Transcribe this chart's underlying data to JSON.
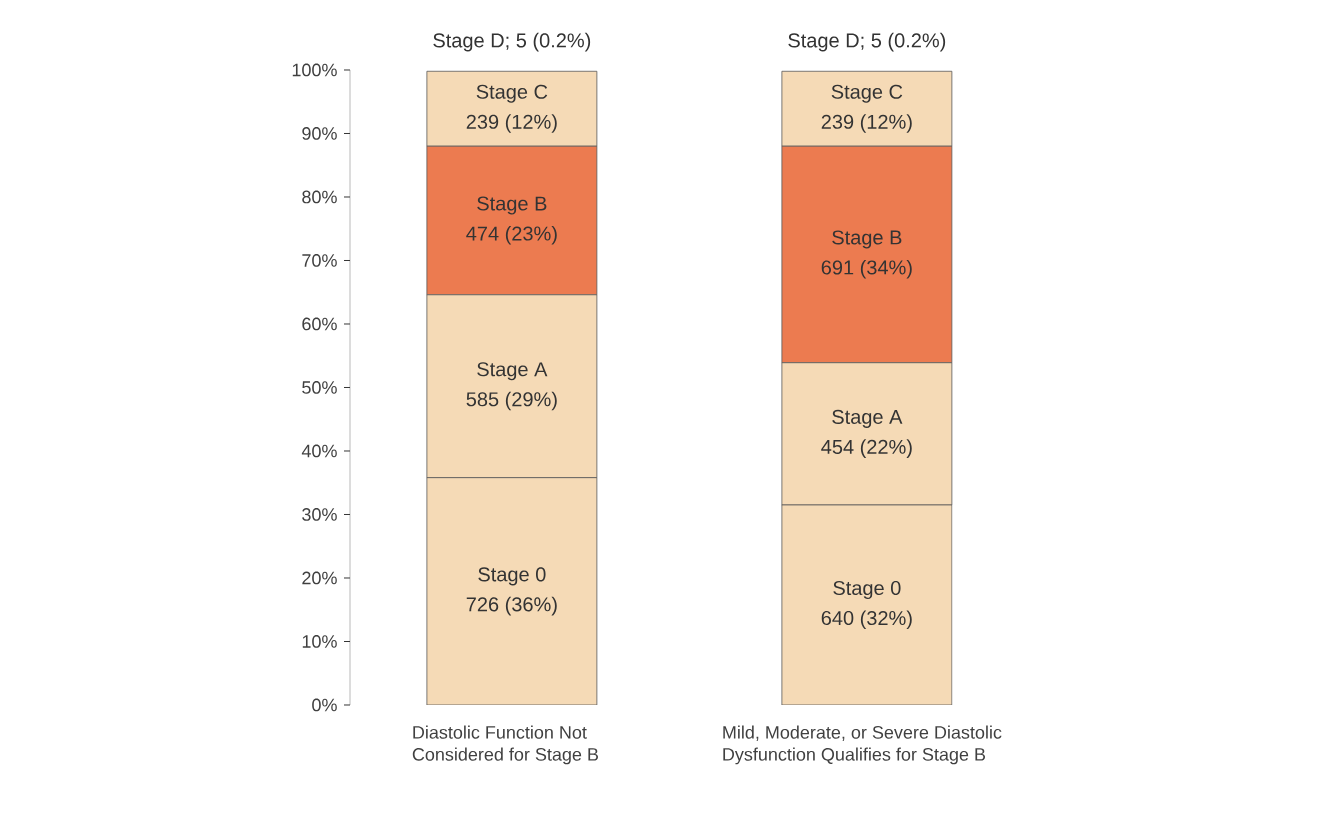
{
  "chart_data": {
    "type": "bar",
    "stacked": true,
    "categories": [
      "Diastolic Function Not Considered for Stage B",
      "Mild, Moderate, or Severe Diastolic Dysfunction Qualifies for Stage B"
    ],
    "series": [
      {
        "name": "Stage 0",
        "color": "#f5dab6",
        "values": [
          35.8,
          31.5
        ],
        "value_labels": [
          "726 (36%)",
          "640 (32%)"
        ]
      },
      {
        "name": "Stage A",
        "color": "#f5dab6",
        "values": [
          28.8,
          22.4
        ],
        "value_labels": [
          "585 (29%)",
          "454 (22%)"
        ]
      },
      {
        "name": "Stage B",
        "color": "#ec7b50",
        "values": [
          23.4,
          34.1
        ],
        "value_labels": [
          "474 (23%)",
          "691 (34%)"
        ]
      },
      {
        "name": "Stage C",
        "color": "#f5dab6",
        "values": [
          11.8,
          11.8
        ],
        "value_labels": [
          "239 (12%)",
          "239 (12%)"
        ]
      }
    ],
    "annotations": [
      {
        "text": "Stage D; 5 (0.2%)",
        "x": "Diastolic Function Not Considered for Stage B",
        "y": 100
      },
      {
        "text": "Stage D; 5 (0.2%)",
        "x": "Mild, Moderate, or Severe Diastolic Dysfunction Qualifies for Stage B",
        "y": 100
      }
    ],
    "ylim": [
      0,
      100
    ],
    "yticks": [
      {
        "value": 0,
        "label": "0%"
      },
      {
        "value": 10,
        "label": "10%"
      },
      {
        "value": 20,
        "label": "20%"
      },
      {
        "value": 30,
        "label": "30%"
      },
      {
        "value": 40,
        "label": "40%"
      },
      {
        "value": 50,
        "label": "50%"
      },
      {
        "value": 60,
        "label": "60%"
      },
      {
        "value": 70,
        "label": "70%"
      },
      {
        "value": 80,
        "label": "80%"
      },
      {
        "value": 90,
        "label": "90%"
      },
      {
        "value": 100,
        "label": "100%"
      }
    ],
    "grid": false
  }
}
